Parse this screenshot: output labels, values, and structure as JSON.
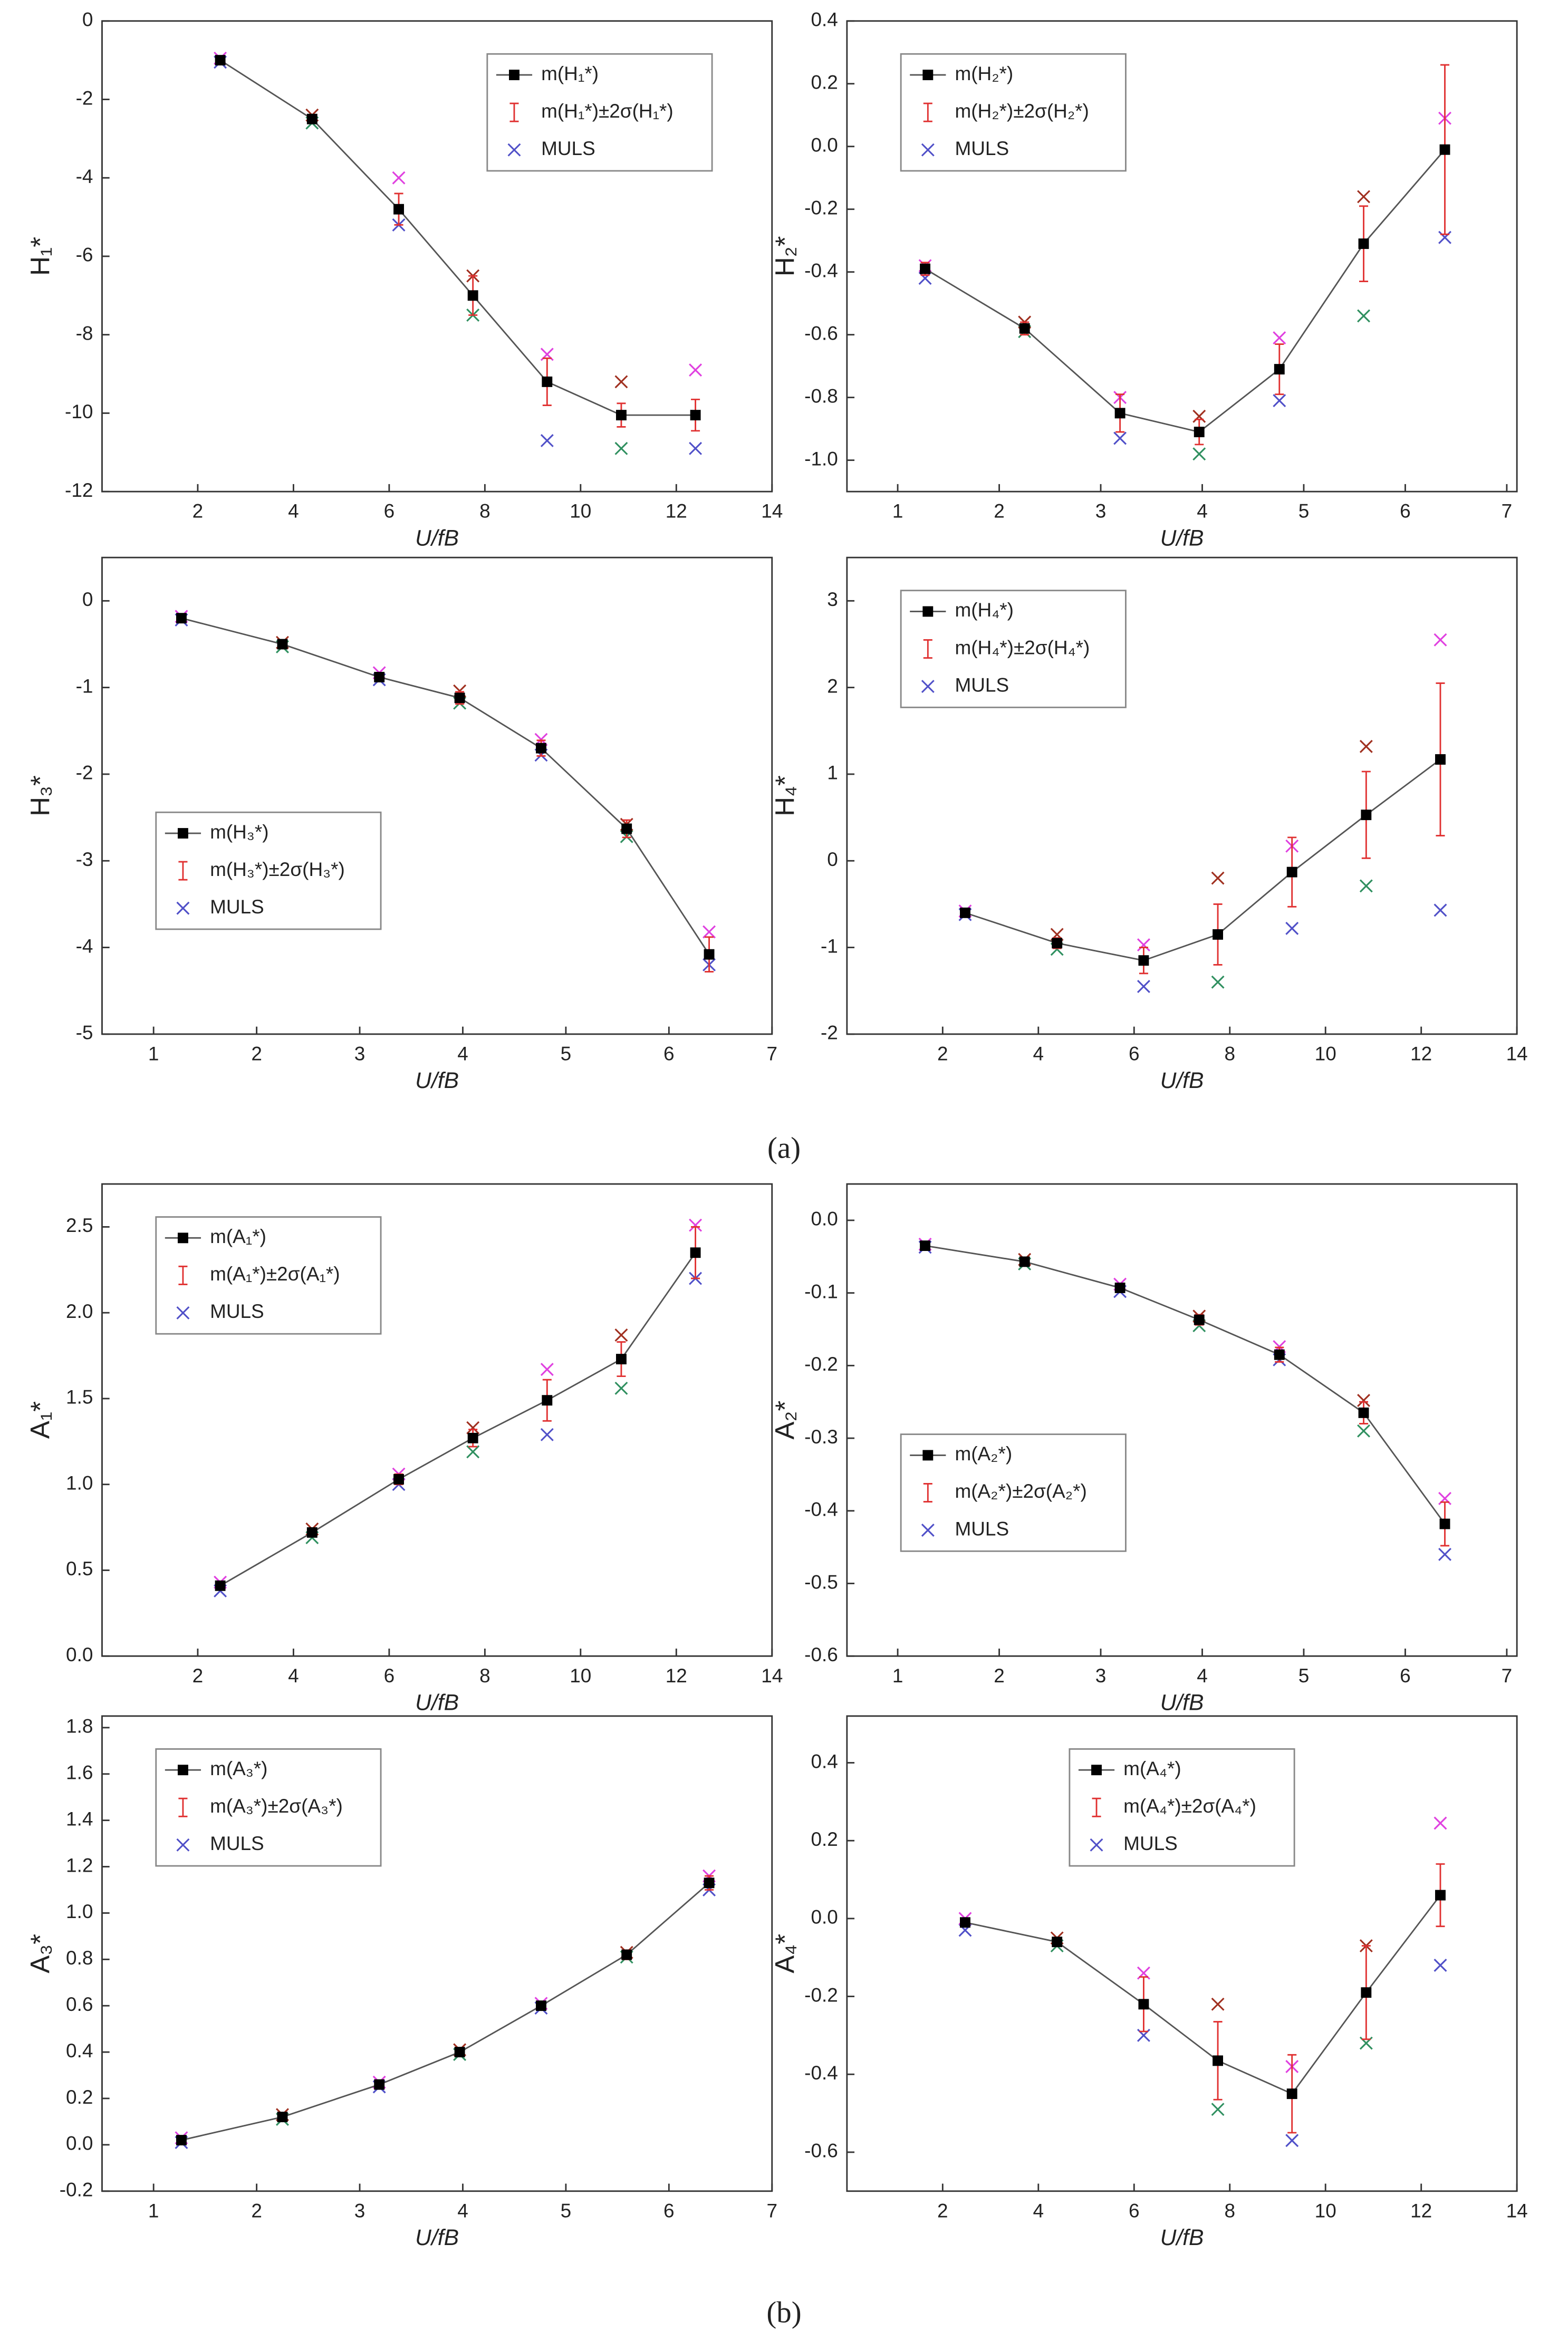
{
  "chart_data": [
    {
      "type": "line",
      "y_label": "H₁*",
      "x_label": "U/fB",
      "legend": "upper right",
      "xlim": [
        0,
        14
      ],
      "xticks": [
        2,
        4,
        6,
        8,
        10,
        12,
        14
      ],
      "ylim": [
        -12,
        0
      ],
      "yticks": [
        0,
        -2,
        -4,
        -6,
        -8,
        -10,
        -12
      ],
      "x": [
        2.47,
        4.39,
        6.2,
        7.75,
        9.3,
        10.85,
        12.4
      ],
      "series": [
        {
          "name": "m(H₁*)",
          "color": "#000000",
          "values": [
            -1,
            -2.5,
            -4.8,
            -7,
            -9.2,
            -10.05,
            -10.05
          ]
        }
      ],
      "error": {
        "name": "m(H₁*)±2σ(H₁*)",
        "color": "#e03030",
        "values": [
          0.05,
          0.1,
          0.4,
          0.5,
          0.6,
          0.3,
          0.4
        ]
      },
      "muls": {
        "name": "MULS",
        "colors": [
          "#5050c8",
          "#e040e0",
          "#309060",
          "#a03020"
        ],
        "x": [
          2.47,
          2.47,
          4.39,
          4.39,
          6.2,
          6.2,
          7.75,
          7.75,
          9.3,
          9.3,
          10.85,
          10.85,
          12.4,
          12.4
        ],
        "values": [
          -1.05,
          -0.95,
          -2.6,
          -2.4,
          -5.2,
          -4.0,
          -7.5,
          -6.5,
          -10.7,
          -8.5,
          -10.9,
          -9.2,
          -10.9,
          -8.9
        ]
      }
    },
    {
      "type": "line",
      "y_label": "H₂*",
      "x_label": "U/fB",
      "legend": "upper left",
      "xlim": [
        0.5,
        7.1
      ],
      "xticks": [
        1,
        2,
        3,
        4,
        5,
        6,
        7
      ],
      "ylim": [
        -1.1,
        0.4
      ],
      "yticks": [
        0.4,
        0.2,
        {
          "value": 0,
          "label": "0.0"
        },
        -0.2,
        -0.4,
        -0.6,
        -0.8,
        {
          "value": -1,
          "label": "-1.0"
        }
      ],
      "x": [
        1.27,
        2.25,
        3.19,
        3.97,
        4.76,
        5.59,
        6.39
      ],
      "series": [
        {
          "name": "m(H₂*)",
          "color": "#000000",
          "values": [
            -0.39,
            -0.58,
            -0.85,
            -0.91,
            -0.71,
            -0.31,
            -0.01
          ]
        }
      ],
      "error": {
        "name": "m(H₂*)±2σ(H₂*)",
        "color": "#e03030",
        "values": [
          0.02,
          0.02,
          0.06,
          0.04,
          0.08,
          0.12,
          0.27
        ]
      },
      "muls": {
        "name": "MULS",
        "colors": [
          "#5050c8",
          "#e040e0",
          "#309060",
          "#a03020"
        ],
        "x": [
          1.27,
          1.27,
          2.25,
          2.25,
          3.19,
          3.19,
          3.97,
          3.97,
          4.76,
          4.76,
          5.59,
          5.59,
          6.39,
          6.39
        ],
        "values": [
          -0.42,
          -0.38,
          -0.59,
          -0.56,
          -0.93,
          -0.8,
          -0.98,
          -0.86,
          -0.81,
          -0.61,
          -0.54,
          -0.16,
          -0.29,
          0.09
        ]
      }
    },
    {
      "type": "line",
      "y_label": "H₃*",
      "x_label": "U/fB",
      "legend": "lower left",
      "xlim": [
        0.5,
        7
      ],
      "xticks": [
        1,
        2,
        3,
        4,
        5,
        6,
        7
      ],
      "ylim": [
        -5,
        0.5
      ],
      "yticks": [
        0,
        -1,
        -2,
        -3,
        -4,
        -5
      ],
      "x": [
        1.27,
        2.25,
        3.19,
        3.97,
        4.76,
        5.59,
        6.39
      ],
      "series": [
        {
          "name": "m(H₃*)",
          "color": "#000000",
          "values": [
            -0.2,
            -0.5,
            -0.88,
            -1.12,
            -1.7,
            -2.63,
            -4.08
          ]
        }
      ],
      "error": {
        "name": "m(H₃*)±2σ(H₃*)",
        "color": "#e03030",
        "values": [
          0.03,
          0.04,
          0.05,
          0.07,
          0.09,
          0.1,
          0.2
        ]
      },
      "muls": {
        "name": "MULS",
        "colors": [
          "#5050c8",
          "#e040e0",
          "#309060",
          "#a03020"
        ],
        "x": [
          1.27,
          1.27,
          2.25,
          2.25,
          3.19,
          3.19,
          3.97,
          3.97,
          4.76,
          4.76,
          5.59,
          5.59,
          6.39,
          6.39
        ],
        "values": [
          -0.22,
          -0.18,
          -0.53,
          -0.48,
          -0.91,
          -0.83,
          -1.18,
          -1.04,
          -1.78,
          -1.6,
          -2.72,
          -2.58,
          -4.2,
          -3.82
        ]
      }
    },
    {
      "type": "line",
      "y_label": "H₄*",
      "x_label": "U/fB",
      "legend": "upper left",
      "xlim": [
        0,
        14
      ],
      "xticks": [
        2,
        4,
        6,
        8,
        10,
        12,
        14
      ],
      "ylim": [
        -2,
        3.5
      ],
      "yticks": [
        3,
        2,
        1,
        0,
        -1,
        -2
      ],
      "x": [
        2.47,
        4.39,
        6.2,
        7.75,
        9.3,
        10.85,
        12.4
      ],
      "series": [
        {
          "name": "m(H₄*)",
          "color": "#000000",
          "values": [
            -0.6,
            -0.95,
            -1.15,
            -0.85,
            -0.13,
            0.53,
            1.17
          ]
        }
      ],
      "error": {
        "name": "m(H₄*)±2σ(H₄*)",
        "color": "#e03030",
        "values": [
          0.03,
          0.06,
          0.15,
          0.35,
          0.4,
          0.5,
          0.88
        ]
      },
      "muls": {
        "name": "MULS",
        "colors": [
          "#5050c8",
          "#e040e0",
          "#309060",
          "#a03020"
        ],
        "x": [
          2.47,
          2.47,
          4.39,
          4.39,
          6.2,
          6.2,
          7.75,
          7.75,
          9.3,
          9.3,
          10.85,
          10.85,
          12.4,
          12.4
        ],
        "values": [
          -0.62,
          -0.58,
          -1.02,
          -0.85,
          -1.45,
          -0.97,
          -1.4,
          -0.2,
          -0.78,
          0.17,
          -0.29,
          1.32,
          -0.57,
          2.55
        ]
      }
    },
    {
      "type": "line",
      "y_label": "A₁*",
      "x_label": "U/fB",
      "legend": "upper left",
      "xlim": [
        0,
        14
      ],
      "xticks": [
        2,
        4,
        6,
        8,
        10,
        12,
        14
      ],
      "ylim": [
        0,
        2.75
      ],
      "yticks": [
        {
          "value": 0,
          "label": "0.0"
        },
        0.5,
        {
          "value": 1,
          "label": "1.0"
        },
        1.5,
        {
          "value": 2,
          "label": "2.0"
        },
        2.5
      ],
      "x": [
        2.47,
        4.39,
        6.2,
        7.75,
        9.3,
        10.85,
        12.4
      ],
      "series": [
        {
          "name": "m(A₁*)",
          "color": "#000000",
          "values": [
            0.41,
            0.72,
            1.03,
            1.27,
            1.49,
            1.73,
            2.35
          ]
        }
      ],
      "error": {
        "name": "m(A₁*)±2σ(A₁*)",
        "color": "#e03030",
        "values": [
          0.02,
          0.02,
          0.03,
          0.05,
          0.12,
          0.1,
          0.15
        ]
      },
      "muls": {
        "name": "MULS",
        "colors": [
          "#5050c8",
          "#e040e0",
          "#309060",
          "#a03020"
        ],
        "x": [
          2.47,
          2.47,
          4.39,
          4.39,
          6.2,
          6.2,
          7.75,
          7.75,
          9.3,
          9.3,
          10.85,
          10.85,
          12.4,
          12.4
        ],
        "values": [
          0.38,
          0.43,
          0.69,
          0.74,
          1.0,
          1.06,
          1.19,
          1.33,
          1.29,
          1.67,
          1.56,
          1.87,
          2.2,
          2.51
        ]
      }
    },
    {
      "type": "line",
      "y_label": "A₂*",
      "x_label": "U/fB",
      "legend": "lower left",
      "xlim": [
        0.5,
        7.1
      ],
      "xticks": [
        1,
        2,
        3,
        4,
        5,
        6,
        7
      ],
      "ylim": [
        -0.6,
        0.05
      ],
      "yticks": [
        {
          "value": 0,
          "label": "0.0"
        },
        -0.1,
        -0.2,
        -0.3,
        -0.4,
        -0.5,
        -0.6
      ],
      "x": [
        1.27,
        2.25,
        3.19,
        3.97,
        4.76,
        5.59,
        6.39
      ],
      "series": [
        {
          "name": "m(A₂*)",
          "color": "#000000",
          "values": [
            -0.035,
            -0.057,
            -0.093,
            -0.137,
            -0.185,
            -0.265,
            -0.418
          ]
        }
      ],
      "error": {
        "name": "m(A₂*)±2σ(A₂*)",
        "color": "#e03030",
        "values": [
          0.003,
          0.004,
          0.006,
          0.007,
          0.01,
          0.015,
          0.03
        ]
      },
      "muls": {
        "name": "MULS",
        "colors": [
          "#5050c8",
          "#e040e0",
          "#309060",
          "#a03020"
        ],
        "x": [
          1.27,
          1.27,
          2.25,
          2.25,
          3.19,
          3.19,
          3.97,
          3.97,
          4.76,
          4.76,
          5.59,
          5.59,
          6.39,
          6.39
        ],
        "values": [
          -0.037,
          -0.033,
          -0.06,
          -0.054,
          -0.098,
          -0.088,
          -0.145,
          -0.132,
          -0.192,
          -0.174,
          -0.29,
          -0.248,
          -0.46,
          -0.383
        ]
      }
    },
    {
      "type": "line",
      "y_label": "A₃*",
      "x_label": "U/fB",
      "legend": "upper left",
      "xlim": [
        0.5,
        7
      ],
      "xticks": [
        1,
        2,
        3,
        4,
        5,
        6,
        7
      ],
      "ylim": [
        -0.2,
        1.85
      ],
      "yticks": [
        1.8,
        1.6,
        1.4,
        1.2,
        {
          "value": 1,
          "label": "1.0"
        },
        0.8,
        0.6,
        0.4,
        0.2,
        {
          "value": 0,
          "label": "0.0"
        },
        -0.2
      ],
      "x": [
        1.27,
        2.25,
        3.19,
        3.97,
        4.76,
        5.59,
        6.39
      ],
      "series": [
        {
          "name": "m(A₃*)",
          "color": "#000000",
          "values": [
            0.02,
            0.12,
            0.26,
            0.4,
            0.6,
            0.82,
            1.13
          ]
        }
      ],
      "error": {
        "name": "m(A₃*)±2σ(A₃*)",
        "color": "#e03030",
        "values": [
          0.01,
          0.01,
          0.01,
          0.01,
          0.015,
          0.02,
          0.03
        ]
      },
      "muls": {
        "name": "MULS",
        "colors": [
          "#5050c8",
          "#e040e0",
          "#309060",
          "#a03020"
        ],
        "x": [
          1.27,
          1.27,
          2.25,
          2.25,
          3.19,
          3.19,
          3.97,
          3.97,
          4.76,
          4.76,
          5.59,
          5.59,
          6.39,
          6.39
        ],
        "values": [
          0.01,
          0.03,
          0.11,
          0.13,
          0.25,
          0.27,
          0.39,
          0.41,
          0.59,
          0.61,
          0.81,
          0.83,
          1.1,
          1.16
        ]
      }
    },
    {
      "type": "line",
      "y_label": "A₄*",
      "x_label": "U/fB",
      "legend": "upper center",
      "xlim": [
        0,
        14
      ],
      "xticks": [
        2,
        4,
        6,
        8,
        10,
        12,
        14
      ],
      "ylim": [
        -0.7,
        0.52
      ],
      "yticks": [
        0.4,
        0.2,
        {
          "value": 0,
          "label": "0.0"
        },
        -0.2,
        -0.4,
        -0.6
      ],
      "x": [
        2.47,
        4.39,
        6.2,
        7.75,
        9.3,
        10.85,
        12.4
      ],
      "series": [
        {
          "name": "m(A₄*)",
          "color": "#000000",
          "values": [
            -0.01,
            -0.06,
            -0.22,
            -0.365,
            -0.45,
            -0.19,
            0.06
          ]
        }
      ],
      "error": {
        "name": "m(A₄*)±2σ(A₄*)",
        "color": "#e03030",
        "values": [
          0.01,
          0.01,
          0.07,
          0.1,
          0.1,
          0.12,
          0.08
        ]
      },
      "muls": {
        "name": "MULS",
        "colors": [
          "#5050c8",
          "#e040e0",
          "#309060",
          "#a03020"
        ],
        "x": [
          2.47,
          2.47,
          4.39,
          4.39,
          6.2,
          6.2,
          7.75,
          7.75,
          9.3,
          9.3,
          10.85,
          10.85,
          12.4,
          12.4
        ],
        "values": [
          -0.03,
          0.0,
          -0.07,
          -0.05,
          -0.3,
          -0.14,
          -0.49,
          -0.22,
          -0.57,
          -0.38,
          -0.32,
          -0.07,
          -0.12,
          0.245
        ]
      }
    }
  ],
  "captions": [
    "(a)",
    "(b)"
  ]
}
